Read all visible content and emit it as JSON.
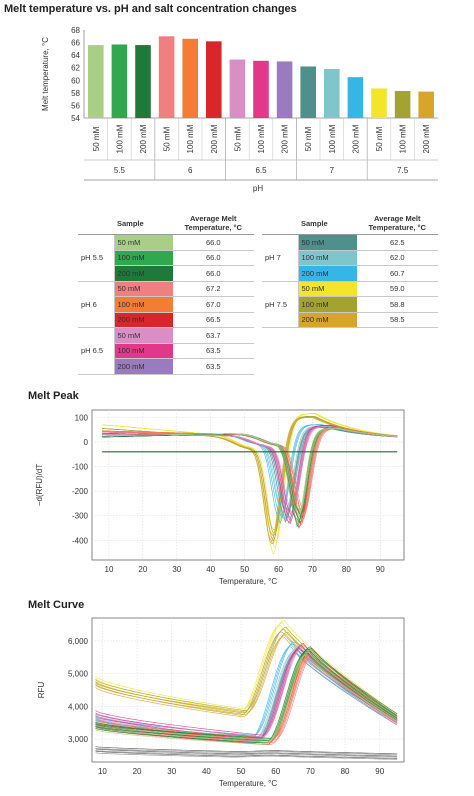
{
  "chart_data": [
    {
      "type": "bar",
      "title": "Melt temperature vs. pH and salt concentration changes",
      "ylabel": "Melt temperature, °C",
      "xlabel": "pH",
      "ylim": [
        54,
        68
      ],
      "yticks": [
        54,
        56,
        58,
        60,
        62,
        64,
        66,
        68
      ],
      "groups": [
        {
          "label": "5.5",
          "bars": [
            {
              "label": "50 mM",
              "value": 65.6,
              "color": "#a9cf86"
            },
            {
              "label": "100 mM",
              "value": 65.7,
              "color": "#2fa84f"
            },
            {
              "label": "200 mM",
              "value": 65.6,
              "color": "#1f7a3a"
            }
          ]
        },
        {
          "label": "6",
          "bars": [
            {
              "label": "50 mM",
              "value": 67.0,
              "color": "#f08080"
            },
            {
              "label": "100 mM",
              "value": 66.6,
              "color": "#f47c34"
            },
            {
              "label": "200 mM",
              "value": 66.2,
              "color": "#d9262a"
            }
          ]
        },
        {
          "label": "6.5",
          "bars": [
            {
              "label": "50 mM",
              "value": 63.3,
              "color": "#d98fc6"
            },
            {
              "label": "100 mM",
              "value": 63.1,
              "color": "#e3388a"
            },
            {
              "label": "200 mM",
              "value": 63.0,
              "color": "#9b7bbf"
            }
          ]
        },
        {
          "label": "7",
          "bars": [
            {
              "label": "50 mM",
              "value": 62.2,
              "color": "#4f8f8c"
            },
            {
              "label": "100 mM",
              "value": 61.8,
              "color": "#7fc6cc"
            },
            {
              "label": "200 mM",
              "value": 60.5,
              "color": "#35b6e6"
            }
          ]
        },
        {
          "label": "7.5",
          "bars": [
            {
              "label": "50 mM",
              "value": 58.7,
              "color": "#f2e52a"
            },
            {
              "label": "100 mM",
              "value": 58.3,
              "color": "#a3a331"
            },
            {
              "label": "200 mM",
              "value": 58.2,
              "color": "#d6a52a"
            }
          ]
        }
      ]
    },
    {
      "type": "table",
      "columns": [
        "Sample",
        "Average Melt Temperature, °C"
      ],
      "tables": [
        {
          "groups": [
            {
              "label": "pH 5.5",
              "rows": [
                {
                  "sample": "50 mM",
                  "value": "66.0",
                  "color": "#a9cf86"
                },
                {
                  "sample": "100 mM",
                  "value": "66.0",
                  "color": "#2fa84f"
                },
                {
                  "sample": "200 mM",
                  "value": "66.0",
                  "color": "#1f7a3a"
                }
              ]
            },
            {
              "label": "pH 6",
              "rows": [
                {
                  "sample": "50 mM",
                  "value": "67.2",
                  "color": "#f08080"
                },
                {
                  "sample": "100 mM",
                  "value": "67.0",
                  "color": "#f47c34"
                },
                {
                  "sample": "200 mM",
                  "value": "66.5",
                  "color": "#d9262a"
                }
              ]
            },
            {
              "label": "pH 6.5",
              "rows": [
                {
                  "sample": "50 mM",
                  "value": "63.7",
                  "color": "#d98fc6"
                },
                {
                  "sample": "100 mM",
                  "value": "63.5",
                  "color": "#e3388a"
                },
                {
                  "sample": "200 mM",
                  "value": "63.5",
                  "color": "#9b7bbf"
                }
              ]
            }
          ]
        },
        {
          "groups": [
            {
              "label": "pH 7",
              "rows": [
                {
                  "sample": "50 mM",
                  "value": "62.5",
                  "color": "#4f8f8c"
                },
                {
                  "sample": "100 mM",
                  "value": "62.0",
                  "color": "#7fc6cc"
                },
                {
                  "sample": "200 mM",
                  "value": "60.7",
                  "color": "#35b6e6"
                }
              ]
            },
            {
              "label": "pH 7.5",
              "rows": [
                {
                  "sample": "50 mM",
                  "value": "59.0",
                  "color": "#f2e52a"
                },
                {
                  "sample": "100 mM",
                  "value": "58.8",
                  "color": "#a3a331"
                },
                {
                  "sample": "200 mM",
                  "value": "58.5",
                  "color": "#d6a52a"
                }
              ]
            }
          ]
        }
      ]
    },
    {
      "type": "line",
      "title": "Melt Peak",
      "xlabel": "Temperature, °C",
      "ylabel": "−d(RFU)/dT",
      "xlim": [
        5,
        97
      ],
      "ylim": [
        -480,
        130
      ],
      "xticks": [
        10,
        20,
        30,
        40,
        50,
        60,
        70,
        80,
        90
      ],
      "yticks": [
        100,
        0,
        -100,
        -200,
        -300,
        -400
      ],
      "threshold": -40,
      "grid": true,
      "series": [
        {
          "color": "#f2e52a",
          "min_at": 58.8,
          "depth": 455,
          "start": 70,
          "end": 20,
          "post": 110
        },
        {
          "color": "#a3a331",
          "min_at": 58.4,
          "depth": 420,
          "start": 55,
          "end": 15,
          "post": 100
        },
        {
          "color": "#d6a52a",
          "min_at": 58.2,
          "depth": 405,
          "start": 45,
          "end": 18,
          "post": 95
        },
        {
          "color": "#35b6e6",
          "min_at": 60.6,
          "depth": 335,
          "start": 30,
          "end": 35,
          "post": 60
        },
        {
          "color": "#7fc6cc",
          "min_at": 61.9,
          "depth": 330,
          "start": 30,
          "end": 30,
          "post": 55
        },
        {
          "color": "#4f8f8c",
          "min_at": 62.3,
          "depth": 325,
          "start": 25,
          "end": 30,
          "post": 50
        },
        {
          "color": "#9b7bbf",
          "min_at": 63.2,
          "depth": 330,
          "start": 30,
          "end": 25,
          "post": 60
        },
        {
          "color": "#e3388a",
          "min_at": 63.4,
          "depth": 340,
          "start": 35,
          "end": 25,
          "post": 60
        },
        {
          "color": "#d98fc6",
          "min_at": 63.6,
          "depth": 325,
          "start": 30,
          "end": 25,
          "post": 55
        },
        {
          "color": "#d9262a",
          "min_at": 66.2,
          "depth": 350,
          "start": 40,
          "end": 30,
          "post": 50
        },
        {
          "color": "#f47c34",
          "min_at": 66.8,
          "depth": 340,
          "start": 45,
          "end": 30,
          "post": 50
        },
        {
          "color": "#f08080",
          "min_at": 67.1,
          "depth": 330,
          "start": 40,
          "end": 30,
          "post": 45
        },
        {
          "color": "#1f7a3a",
          "min_at": 65.8,
          "depth": 345,
          "start": 20,
          "end": 35,
          "post": 45
        },
        {
          "color": "#2fa84f",
          "min_at": 65.9,
          "depth": 340,
          "start": 25,
          "end": 35,
          "post": 45
        },
        {
          "color": "#a9cf86",
          "min_at": 65.7,
          "depth": 330,
          "start": 25,
          "end": 35,
          "post": 45
        }
      ]
    },
    {
      "type": "line",
      "title": "Melt Curve",
      "xlabel": "Temperature, °C",
      "ylabel": "RFU",
      "xlim": [
        7,
        97
      ],
      "ylim": [
        2300,
        6700
      ],
      "xticks": [
        10,
        20,
        30,
        40,
        50,
        60,
        70,
        80,
        90
      ],
      "yticks": [
        3000,
        4000,
        5000,
        6000
      ],
      "yticklabels": [
        "3,000",
        "4,000",
        "5,000",
        "6,000"
      ],
      "grid": true,
      "series": [
        {
          "color": "#f2e52a",
          "start": 4850,
          "valley": 3850,
          "peak_at": 62,
          "peak": 6550,
          "end": 3700
        },
        {
          "color": "#a3a331",
          "start": 4750,
          "valley": 3800,
          "peak_at": 62.5,
          "peak": 6350,
          "end": 3650
        },
        {
          "color": "#d6a52a",
          "start": 4650,
          "valley": 3750,
          "peak_at": 63,
          "peak": 6200,
          "end": 3600
        },
        {
          "color": "#35b6e6",
          "start": 3600,
          "valley": 3050,
          "peak_at": 65,
          "peak": 5900,
          "end": 3600
        },
        {
          "color": "#7fc6cc",
          "start": 3500,
          "valley": 3000,
          "peak_at": 66,
          "peak": 5750,
          "end": 3550
        },
        {
          "color": "#4f8f8c",
          "start": 3450,
          "valley": 2950,
          "peak_at": 66.5,
          "peak": 5700,
          "end": 3500
        },
        {
          "color": "#9b7bbf",
          "start": 3700,
          "valley": 3000,
          "peak_at": 67,
          "peak": 5800,
          "end": 3500
        },
        {
          "color": "#e3388a",
          "start": 3800,
          "valley": 3050,
          "peak_at": 67.5,
          "peak": 5850,
          "end": 3550
        },
        {
          "color": "#d98fc6",
          "start": 3650,
          "valley": 3000,
          "peak_at": 67.5,
          "peak": 5750,
          "end": 3500
        },
        {
          "color": "#d9262a",
          "start": 3450,
          "valley": 2900,
          "peak_at": 70,
          "peak": 5700,
          "end": 3650
        },
        {
          "color": "#f47c34",
          "start": 3500,
          "valley": 2950,
          "peak_at": 70.5,
          "peak": 5650,
          "end": 3600
        },
        {
          "color": "#f08080",
          "start": 3400,
          "valley": 2900,
          "peak_at": 71,
          "peak": 5600,
          "end": 3550
        },
        {
          "color": "#1f7a3a",
          "start": 3400,
          "valley": 2950,
          "peak_at": 69.5,
          "peak": 5750,
          "end": 3700
        },
        {
          "color": "#2fa84f",
          "start": 3450,
          "valley": 2950,
          "peak_at": 69.5,
          "peak": 5700,
          "end": 3650
        },
        {
          "color": "#a9cf86",
          "start": 3350,
          "valley": 2900,
          "peak_at": 69.5,
          "peak": 5650,
          "end": 3600
        },
        {
          "color": "#555555",
          "start": 2700,
          "valley": 2550,
          "peak_at": 60,
          "peak": 2580,
          "end": 2480
        },
        {
          "color": "#888888",
          "start": 2650,
          "valley": 2520,
          "peak_at": 60,
          "peak": 2550,
          "end": 2450
        }
      ]
    }
  ]
}
